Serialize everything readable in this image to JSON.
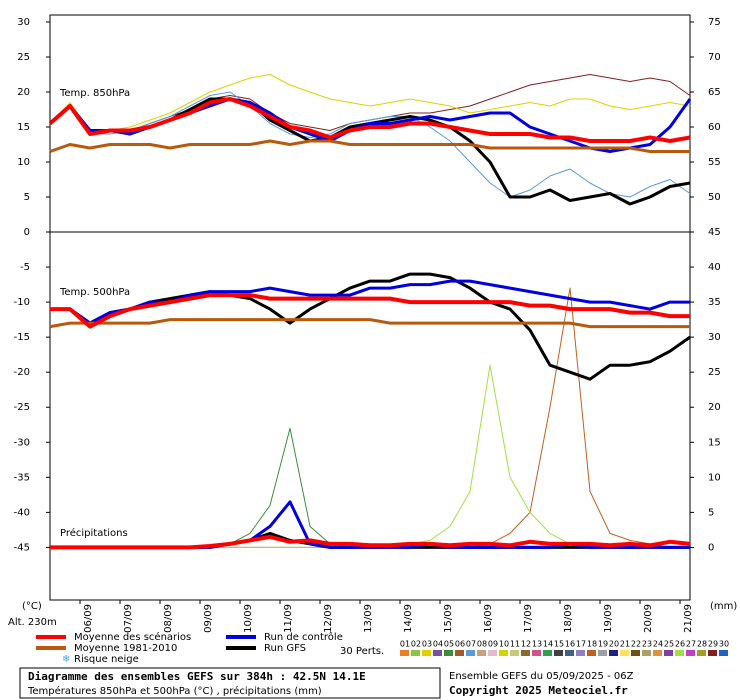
{
  "chart_data": [
    {
      "type": "line",
      "label": "Temp. 850hPa",
      "x": [
        0,
        12,
        24,
        36,
        48,
        60,
        72,
        84,
        96,
        108,
        120,
        132,
        144,
        156,
        168,
        180,
        192,
        204,
        216,
        228,
        240,
        252,
        264,
        276,
        288,
        300,
        312,
        324,
        336,
        348,
        360,
        372,
        384
      ],
      "xlim": [
        0,
        384
      ],
      "ylim": [
        0,
        31
      ],
      "yticks": [
        5,
        10,
        15,
        20,
        25,
        30
      ],
      "y2lim": [
        45,
        76
      ],
      "y2ticks": [
        50,
        55,
        60,
        65,
        70,
        75
      ],
      "series": [
        {
          "name": "Moyenne des scénarios",
          "color": "#ff0000",
          "values": [
            15.5,
            18,
            14,
            14.5,
            14.5,
            15,
            16,
            17,
            18.5,
            19,
            18,
            16.5,
            15,
            14.5,
            13.5,
            14.5,
            15,
            15,
            15.5,
            15.5,
            15,
            14.5,
            14,
            14,
            14,
            13.5,
            13.5,
            13,
            13,
            13,
            13.5,
            13,
            13.5
          ]
        },
        {
          "name": "Moyenne 1981-2010",
          "color": "#b8590e",
          "values": [
            11.5,
            12.5,
            12,
            12.5,
            12.5,
            12.5,
            12,
            12.5,
            12.5,
            12.5,
            12.5,
            13,
            12.5,
            13,
            13,
            12.5,
            12.5,
            12.5,
            12.5,
            12.5,
            12.5,
            12.5,
            12,
            12,
            12,
            12,
            12,
            12,
            12,
            12,
            11.5,
            11.5,
            11.5
          ]
        },
        {
          "name": "Run de contrôle",
          "color": "#0000e0",
          "values": [
            15.5,
            18,
            14.5,
            14.5,
            14,
            15,
            16,
            17,
            18,
            19,
            18.5,
            17,
            15,
            14,
            13,
            14.5,
            15.5,
            15.5,
            16,
            16.5,
            16,
            16.5,
            17,
            17,
            15,
            14,
            13,
            12,
            11.5,
            12,
            12.5,
            15,
            19
          ]
        },
        {
          "name": "Run GFS",
          "color": "#000000",
          "values": [
            15.5,
            18,
            14.5,
            14.5,
            14,
            15,
            16,
            17.5,
            19,
            19,
            18.5,
            16,
            14.5,
            13,
            13.5,
            15,
            15.5,
            16,
            16.5,
            16,
            15,
            13,
            10,
            5,
            5,
            6,
            4.5,
            5,
            5.5,
            4,
            5,
            6.5,
            7
          ]
        },
        {
          "color": "#802020",
          "values": [
            15.5,
            18,
            14.5,
            14.5,
            14.5,
            15.5,
            16.5,
            17.5,
            19,
            19.5,
            19,
            17,
            15.5,
            15,
            14.5,
            15.5,
            16,
            16.5,
            17,
            17,
            17.5,
            18,
            19,
            20,
            21,
            21.5,
            22,
            22.5,
            22,
            21.5,
            22,
            21.5,
            19.5
          ]
        },
        {
          "color": "#5b9bd5",
          "values": [
            15.5,
            18,
            14,
            14,
            14.5,
            15.5,
            16.5,
            18,
            19.5,
            20,
            18,
            15.5,
            14,
            13.5,
            14,
            15.5,
            16,
            16.5,
            16.5,
            15,
            13,
            10,
            7,
            5,
            6,
            8,
            9,
            7,
            5.5,
            5,
            6.5,
            7.5,
            5.5
          ]
        },
        {
          "color": "#e0d000",
          "values": [
            15.5,
            18.5,
            14.5,
            14.5,
            15,
            16,
            17,
            18.5,
            20,
            21,
            22,
            22.5,
            21,
            20,
            19,
            18.5,
            18,
            18.5,
            19,
            18.5,
            18,
            17,
            17.5,
            18,
            18.5,
            18,
            19,
            19,
            18,
            17.5,
            18,
            18.5,
            18
          ]
        }
      ]
    },
    {
      "type": "line",
      "label": "Temp. 500hPa",
      "annotation": "Précipitations",
      "x": [
        0,
        12,
        24,
        36,
        48,
        60,
        72,
        84,
        96,
        108,
        120,
        132,
        144,
        156,
        168,
        180,
        192,
        204,
        216,
        228,
        240,
        252,
        264,
        276,
        288,
        300,
        312,
        324,
        336,
        348,
        360,
        372,
        384
      ],
      "xlim": [
        0,
        384
      ],
      "xticks": [
        {
          "value": 18,
          "label": "06/09"
        },
        {
          "value": 42,
          "label": "07/09"
        },
        {
          "value": 66,
          "label": "08/09"
        },
        {
          "value": 90,
          "label": "09/09"
        },
        {
          "value": 114,
          "label": "10/09"
        },
        {
          "value": 138,
          "label": "11/09"
        },
        {
          "value": 162,
          "label": "12/09"
        },
        {
          "value": 186,
          "label": "13/09"
        },
        {
          "value": 210,
          "label": "14/09"
        },
        {
          "value": 234,
          "label": "15/09"
        },
        {
          "value": 258,
          "label": "16/09"
        },
        {
          "value": 282,
          "label": "17/09"
        },
        {
          "value": 306,
          "label": "18/09"
        },
        {
          "value": 330,
          "label": "19/09"
        },
        {
          "value": 354,
          "label": "20/09"
        },
        {
          "value": 378,
          "label": "21/09"
        }
      ],
      "ylim": [
        -52.5,
        0
      ],
      "yticks": [
        0,
        -5,
        -10,
        -15,
        -20,
        -25,
        -30,
        -35,
        -40,
        -45
      ],
      "y2lim": [
        -7.5,
        45
      ],
      "y2ticks": [
        45,
        40,
        35,
        30,
        25,
        20,
        15,
        10,
        5,
        0
      ],
      "series": [
        {
          "color": "#ff0000",
          "values": [
            -11,
            -11,
            -13.5,
            -12,
            -11,
            -10.5,
            -10,
            -9.5,
            -9,
            -9,
            -9,
            -9.5,
            -9.5,
            -9.5,
            -9.5,
            -9.5,
            -9.5,
            -9.5,
            -10,
            -10,
            -10,
            -10,
            -10,
            -10,
            -10.5,
            -10.5,
            -11,
            -11,
            -11,
            -11.5,
            -11.5,
            -12,
            -12
          ]
        },
        {
          "color": "#b8590e",
          "values": [
            -13.5,
            -13,
            -13,
            -13,
            -13,
            -13,
            -12.5,
            -12.5,
            -12.5,
            -12.5,
            -12.5,
            -12.5,
            -12.5,
            -12.5,
            -12.5,
            -12.5,
            -12.5,
            -13,
            -13,
            -13,
            -13,
            -13,
            -13,
            -13,
            -13,
            -13,
            -13,
            -13.5,
            -13.5,
            -13.5,
            -13.5,
            -13.5,
            -13.5
          ]
        },
        {
          "color": "#0000e0",
          "values": [
            -11,
            -11,
            -13,
            -11.5,
            -11,
            -10,
            -10,
            -9,
            -8.5,
            -8.5,
            -8.5,
            -8,
            -8.5,
            -9,
            -9,
            -9,
            -8,
            -8,
            -7.5,
            -7.5,
            -7,
            -7,
            -7.5,
            -8,
            -8.5,
            -9,
            -9.5,
            -10,
            -10,
            -10.5,
            -11,
            -10,
            -10
          ]
        },
        {
          "color": "#000000",
          "values": [
            -11,
            -11,
            -13,
            -11.5,
            -11,
            -10,
            -9.5,
            -9,
            -8.5,
            -9,
            -9.5,
            -11,
            -13,
            -11,
            -9.5,
            -8,
            -7,
            -7,
            -6,
            -6,
            -6.5,
            -8,
            -10,
            -11,
            -14,
            -19,
            -20,
            -21,
            -19,
            -19,
            -18.5,
            -17,
            -15
          ]
        },
        {
          "color": "#ff0000",
          "axis": "y2",
          "values": [
            0,
            0,
            0,
            0,
            0,
            0,
            0,
            0,
            0.2,
            0.5,
            1,
            1.5,
            0.8,
            1,
            0.5,
            0.5,
            0.3,
            0.3,
            0.5,
            0.5,
            0.3,
            0.5,
            0.5,
            0.3,
            0.8,
            0.5,
            0.5,
            0.5,
            0.3,
            0.5,
            0.3,
            0.8,
            0.5
          ]
        },
        {
          "color": "#0000e0",
          "axis": "y2",
          "values": [
            0,
            0,
            0,
            0,
            0,
            0,
            0,
            0,
            0,
            0.5,
            1,
            3,
            6.5,
            0.5,
            0,
            0,
            0,
            0,
            0,
            0.5,
            0,
            0,
            0,
            0,
            0,
            0,
            0.5,
            0,
            0,
            0,
            0,
            0,
            0
          ]
        },
        {
          "color": "#000000",
          "axis": "y2",
          "values": [
            0,
            0,
            0,
            0,
            0,
            0,
            0,
            0,
            0,
            0.5,
            1,
            2,
            1,
            0.5,
            0,
            0,
            0,
            0,
            0,
            0,
            0,
            0,
            0,
            0,
            0,
            0,
            0,
            0,
            0,
            0,
            0,
            0,
            0
          ]
        },
        {
          "color": "#c06020",
          "axis": "y2",
          "values": [
            0,
            0,
            0,
            0,
            0,
            0,
            0,
            0,
            0,
            0,
            0,
            0,
            0,
            0,
            0,
            0,
            0,
            0,
            0,
            0,
            0,
            0,
            0.5,
            2,
            5,
            20,
            37,
            8,
            2,
            1,
            0.5,
            0,
            0
          ]
        },
        {
          "color": "#a0e040",
          "axis": "y2",
          "values": [
            0,
            0,
            0,
            0,
            0,
            0,
            0,
            0,
            0,
            0,
            0,
            0,
            0,
            0,
            0,
            0,
            0,
            0,
            0.5,
            1,
            3,
            8,
            26,
            10,
            5,
            2,
            0.5,
            0,
            0,
            0,
            0,
            0,
            0
          ]
        },
        {
          "color": "#3a8d3a",
          "axis": "y2",
          "values": [
            0,
            0,
            0,
            0,
            0,
            0,
            0,
            0,
            0,
            0.5,
            2,
            6,
            17,
            3,
            0.5,
            0,
            0,
            0,
            0,
            0,
            0,
            0,
            0,
            0,
            0,
            0,
            0,
            0,
            0,
            0,
            0,
            0,
            0
          ]
        }
      ]
    }
  ],
  "labels": {
    "left_unit": "(°C)",
    "right_unit": "(mm)",
    "altitude": "Alt. 230m",
    "snow": "Risque neige",
    "perts": "30 Perts."
  },
  "perturbations": [
    {
      "name": "01",
      "color": "#e87e26"
    },
    {
      "name": "02",
      "color": "#8cc63f"
    },
    {
      "name": "03",
      "color": "#e0d000"
    },
    {
      "name": "04",
      "color": "#7b4fa3"
    },
    {
      "name": "05",
      "color": "#3a8d3a"
    },
    {
      "name": "06",
      "color": "#a05a2c"
    },
    {
      "name": "07",
      "color": "#5b9bd5"
    },
    {
      "name": "08",
      "color": "#c7a17a"
    },
    {
      "name": "09",
      "color": "#e6b8d0"
    },
    {
      "name": "10",
      "color": "#d4d400"
    },
    {
      "name": "11",
      "color": "#c8c87a"
    },
    {
      "name": "12",
      "color": "#8a6a2a"
    },
    {
      "name": "13",
      "color": "#d05090"
    },
    {
      "name": "14",
      "color": "#30a050"
    },
    {
      "name": "15",
      "color": "#404040"
    },
    {
      "name": "16",
      "color": "#406080"
    },
    {
      "name": "17",
      "color": "#9080c0"
    },
    {
      "name": "18",
      "color": "#c06020"
    },
    {
      "name": "19",
      "color": "#a0a0a0"
    },
    {
      "name": "20",
      "color": "#202080"
    },
    {
      "name": "21",
      "color": "#ffe060"
    },
    {
      "name": "22",
      "color": "#705010"
    },
    {
      "name": "23",
      "color": "#b0a060"
    },
    {
      "name": "24",
      "color": "#e09040"
    },
    {
      "name": "25",
      "color": "#8040a0"
    },
    {
      "name": "26",
      "color": "#a0e040"
    },
    {
      "name": "27",
      "color": "#c040c0"
    },
    {
      "name": "28",
      "color": "#a0a020"
    },
    {
      "name": "29",
      "color": "#802020"
    },
    {
      "name": "30",
      "color": "#2060c0"
    }
  ],
  "footer": {
    "title": "Diagramme des ensembles GEFS sur 384h : 42.5N 14.1E",
    "subtitle": "Températures 850hPa et 500hPa (°C) , précipitations (mm)",
    "run": "Ensemble GEFS du 05/09/2025 - 06Z",
    "copyright": "Copyright 2025 Meteociel.fr"
  }
}
